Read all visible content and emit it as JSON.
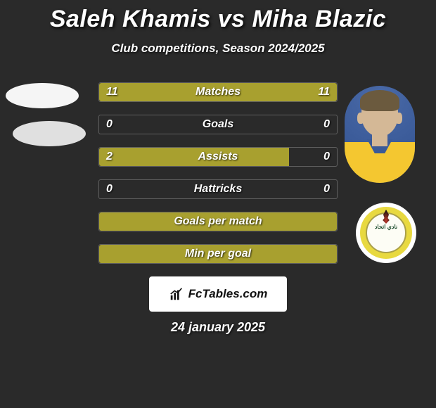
{
  "title": "Saleh Khamis vs Miha Blazic",
  "subtitle": "Club competitions, Season 2024/2025",
  "date": "24 january 2025",
  "brand": "FcTables.com",
  "colors": {
    "bar_olive": "#a8a02f",
    "bar_olive_dark": "#918a28",
    "background": "#2a2a2a",
    "text": "#ffffff"
  },
  "stats": [
    {
      "label": "Matches",
      "left_val": "11",
      "right_val": "11",
      "left_pct": 50,
      "right_pct": 50
    },
    {
      "label": "Goals",
      "left_val": "0",
      "right_val": "0",
      "left_pct": 0,
      "right_pct": 0
    },
    {
      "label": "Assists",
      "left_val": "2",
      "right_val": "0",
      "left_pct": 80,
      "right_pct": 0
    },
    {
      "label": "Hattricks",
      "left_val": "0",
      "right_val": "0",
      "left_pct": 0,
      "right_pct": 0
    },
    {
      "label": "Goals per match",
      "left_val": "",
      "right_val": "",
      "left_pct": 100,
      "right_pct": 0,
      "full": true
    },
    {
      "label": "Min per goal",
      "left_val": "",
      "right_val": "",
      "left_pct": 100,
      "right_pct": 0,
      "full": true
    }
  ],
  "players": {
    "left": {
      "name": "Saleh Khamis"
    },
    "right": {
      "name": "Miha Blazic"
    }
  }
}
